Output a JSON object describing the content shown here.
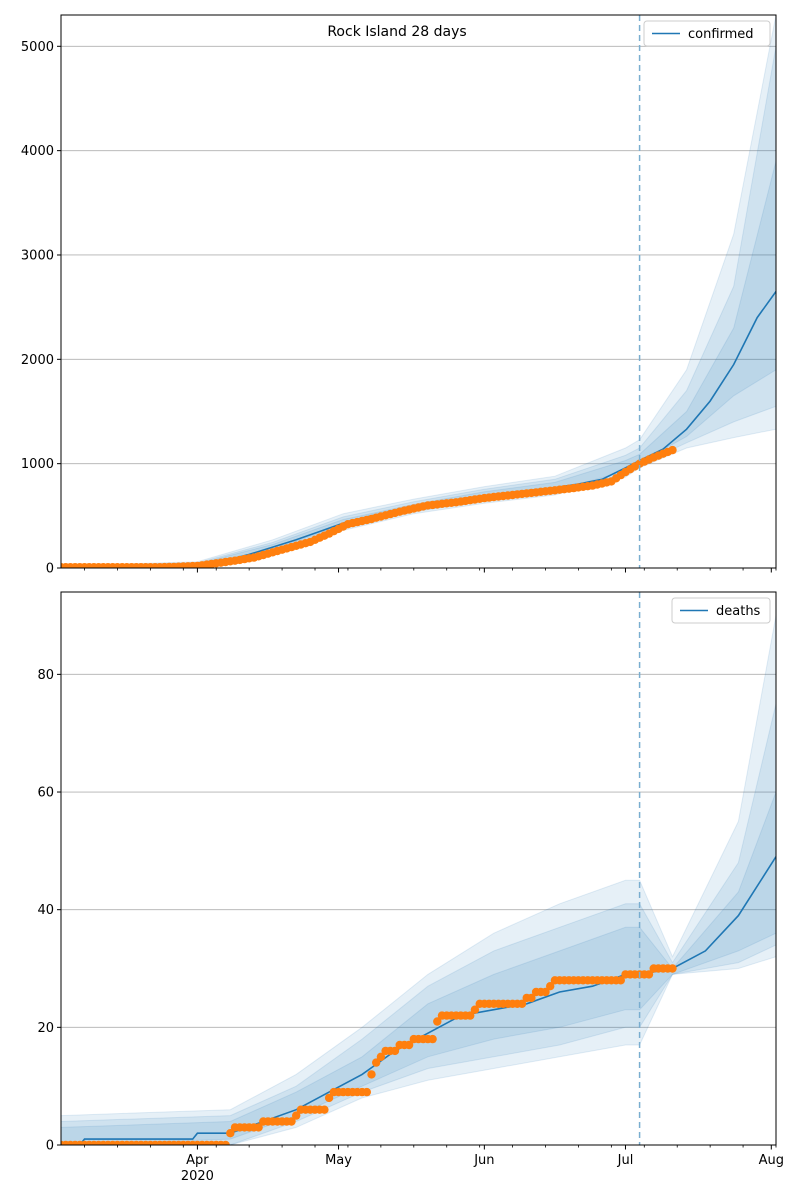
{
  "figure": {
    "title": "Rock Island 28 days"
  },
  "colors": {
    "model": "#1f77b4",
    "observed": "#ff7f0e",
    "band": "#1f77b4",
    "grid": "#b0b0b0",
    "forecast_line": "#7aaed0"
  },
  "x_axis": {
    "range": [
      "2020-03-03",
      "2020-08-02"
    ],
    "major_ticks": [
      {
        "date": "2020-04-01",
        "label": "Apr",
        "sublabel": "2020"
      },
      {
        "date": "2020-05-01",
        "label": "May",
        "sublabel": ""
      },
      {
        "date": "2020-06-01",
        "label": "Jun",
        "sublabel": ""
      },
      {
        "date": "2020-07-01",
        "label": "Jul",
        "sublabel": ""
      },
      {
        "date": "2020-08-01",
        "label": "Aug",
        "sublabel": ""
      }
    ],
    "minor_ticks": [
      "2020-03-08",
      "2020-03-15",
      "2020-03-22",
      "2020-03-29",
      "2020-04-05",
      "2020-04-12",
      "2020-04-19",
      "2020-04-26",
      "2020-05-03",
      "2020-05-10",
      "2020-05-17",
      "2020-05-24",
      "2020-05-31",
      "2020-06-07",
      "2020-06-14",
      "2020-06-21",
      "2020-06-28",
      "2020-07-05",
      "2020-07-12",
      "2020-07-19",
      "2020-07-26",
      "2020-08-02"
    ]
  },
  "forecast_start": "2020-07-04",
  "chart_data": [
    {
      "type": "line",
      "legend": "confirmed",
      "legend_position": "top-right",
      "grid": "horizontal",
      "ylim": [
        0,
        5300
      ],
      "yticks": [
        0,
        1000,
        2000,
        3000,
        4000,
        5000
      ],
      "model": [
        [
          "2020-03-03",
          5
        ],
        [
          "2020-03-20",
          8
        ],
        [
          "2020-03-27",
          15
        ],
        [
          "2020-04-01",
          30
        ],
        [
          "2020-04-07",
          70
        ],
        [
          "2020-04-12",
          130
        ],
        [
          "2020-04-17",
          200
        ],
        [
          "2020-04-22",
          270
        ],
        [
          "2020-04-27",
          350
        ],
        [
          "2020-05-02",
          430
        ],
        [
          "2020-05-07",
          490
        ],
        [
          "2020-05-12",
          540
        ],
        [
          "2020-05-17",
          580
        ],
        [
          "2020-05-22",
          620
        ],
        [
          "2020-05-27",
          660
        ],
        [
          "2020-06-01",
          690
        ],
        [
          "2020-06-06",
          720
        ],
        [
          "2020-06-11",
          745
        ],
        [
          "2020-06-16",
          770
        ],
        [
          "2020-06-21",
          805
        ],
        [
          "2020-06-26",
          850
        ],
        [
          "2020-07-01",
          960
        ],
        [
          "2020-07-04",
          1030
        ],
        [
          "2020-07-09",
          1140
        ],
        [
          "2020-07-14",
          1330
        ],
        [
          "2020-07-19",
          1600
        ],
        [
          "2020-07-24",
          1950
        ],
        [
          "2020-07-29",
          2400
        ],
        [
          "2020-08-02",
          2650
        ]
      ],
      "bands": [
        {
          "lower": [
            [
              "2020-03-03",
              0
            ],
            [
              "2020-04-01",
              10
            ],
            [
              "2020-04-17",
              150
            ],
            [
              "2020-05-02",
              360
            ],
            [
              "2020-05-17",
              520
            ],
            [
              "2020-06-01",
              620
            ],
            [
              "2020-06-16",
              700
            ],
            [
              "2020-07-01",
              870
            ],
            [
              "2020-07-04",
              960
            ],
            [
              "2020-07-14",
              1150
            ],
            [
              "2020-07-24",
              1250
            ],
            [
              "2020-08-02",
              1330
            ]
          ],
          "upper": [
            [
              "2020-03-03",
              20
            ],
            [
              "2020-04-01",
              60
            ],
            [
              "2020-04-17",
              270
            ],
            [
              "2020-05-02",
              520
            ],
            [
              "2020-05-17",
              660
            ],
            [
              "2020-06-01",
              780
            ],
            [
              "2020-06-16",
              880
            ],
            [
              "2020-07-01",
              1150
            ],
            [
              "2020-07-04",
              1230
            ],
            [
              "2020-07-14",
              1900
            ],
            [
              "2020-07-24",
              3200
            ],
            [
              "2020-08-02",
              5300
            ]
          ]
        },
        {
          "lower": [
            [
              "2020-03-03",
              0
            ],
            [
              "2020-04-01",
              15
            ],
            [
              "2020-04-17",
              165
            ],
            [
              "2020-05-02",
              385
            ],
            [
              "2020-05-17",
              540
            ],
            [
              "2020-06-01",
              640
            ],
            [
              "2020-06-16",
              720
            ],
            [
              "2020-07-01",
              900
            ],
            [
              "2020-07-04",
              990
            ],
            [
              "2020-07-14",
              1200
            ],
            [
              "2020-07-24",
              1400
            ],
            [
              "2020-08-02",
              1550
            ]
          ],
          "upper": [
            [
              "2020-03-03",
              15
            ],
            [
              "2020-04-01",
              50
            ],
            [
              "2020-04-17",
              245
            ],
            [
              "2020-05-02",
              490
            ],
            [
              "2020-05-17",
              635
            ],
            [
              "2020-06-01",
              755
            ],
            [
              "2020-06-16",
              850
            ],
            [
              "2020-07-01",
              1080
            ],
            [
              "2020-07-04",
              1150
            ],
            [
              "2020-07-14",
              1700
            ],
            [
              "2020-07-24",
              2700
            ],
            [
              "2020-08-02",
              5000
            ]
          ]
        },
        {
          "lower": [
            [
              "2020-03-03",
              2
            ],
            [
              "2020-04-01",
              20
            ],
            [
              "2020-04-17",
              180
            ],
            [
              "2020-05-02",
              405
            ],
            [
              "2020-05-17",
              560
            ],
            [
              "2020-06-01",
              660
            ],
            [
              "2020-06-16",
              740
            ],
            [
              "2020-07-01",
              930
            ],
            [
              "2020-07-04",
              1010
            ],
            [
              "2020-07-14",
              1260
            ],
            [
              "2020-07-24",
              1650
            ],
            [
              "2020-08-02",
              1900
            ]
          ],
          "upper": [
            [
              "2020-03-03",
              10
            ],
            [
              "2020-04-01",
              40
            ],
            [
              "2020-04-17",
              225
            ],
            [
              "2020-05-02",
              465
            ],
            [
              "2020-05-17",
              610
            ],
            [
              "2020-06-01",
              730
            ],
            [
              "2020-06-16",
              820
            ],
            [
              "2020-07-01",
              1030
            ],
            [
              "2020-07-04",
              1090
            ],
            [
              "2020-07-14",
              1500
            ],
            [
              "2020-07-24",
              2300
            ],
            [
              "2020-08-02",
              3900
            ]
          ]
        }
      ],
      "observed": [
        [
          "2020-03-03",
          8
        ],
        [
          "2020-03-24",
          8
        ],
        [
          "2020-03-28",
          12
        ],
        [
          "2020-04-01",
          20
        ],
        [
          "2020-04-05",
          45
        ],
        [
          "2020-04-09",
          70
        ],
        [
          "2020-04-13",
          100
        ],
        [
          "2020-04-17",
          150
        ],
        [
          "2020-04-21",
          200
        ],
        [
          "2020-04-25",
          250
        ],
        [
          "2020-04-29",
          330
        ],
        [
          "2020-05-03",
          420
        ],
        [
          "2020-05-08",
          470
        ],
        [
          "2020-05-14",
          540
        ],
        [
          "2020-05-20",
          600
        ],
        [
          "2020-05-26",
          630
        ],
        [
          "2020-06-01",
          670
        ],
        [
          "2020-06-07",
          700
        ],
        [
          "2020-06-13",
          730
        ],
        [
          "2020-06-19",
          760
        ],
        [
          "2020-06-24",
          790
        ],
        [
          "2020-06-28",
          830
        ],
        [
          "2020-07-01",
          920
        ],
        [
          "2020-07-04",
          1000
        ],
        [
          "2020-07-07",
          1060
        ],
        [
          "2020-07-11",
          1130
        ]
      ]
    },
    {
      "type": "line",
      "legend": "deaths",
      "legend_position": "top-right",
      "grid": "horizontal",
      "ylim": [
        0,
        94
      ],
      "yticks": [
        0,
        20,
        40,
        60,
        80
      ],
      "model": [
        [
          "2020-03-03",
          0
        ],
        [
          "2020-03-07",
          0
        ],
        [
          "2020-03-08",
          1
        ],
        [
          "2020-03-31",
          1
        ],
        [
          "2020-04-01",
          2
        ],
        [
          "2020-04-08",
          2
        ],
        [
          "2020-04-15",
          4
        ],
        [
          "2020-04-22",
          6
        ],
        [
          "2020-04-29",
          9
        ],
        [
          "2020-05-06",
          12
        ],
        [
          "2020-05-13",
          16
        ],
        [
          "2020-05-20",
          19
        ],
        [
          "2020-05-27",
          22
        ],
        [
          "2020-06-03",
          23
        ],
        [
          "2020-06-10",
          24
        ],
        [
          "2020-06-17",
          26
        ],
        [
          "2020-06-24",
          27
        ],
        [
          "2020-07-01",
          29
        ],
        [
          "2020-07-04",
          29
        ],
        [
          "2020-07-11",
          30
        ],
        [
          "2020-07-18",
          33
        ],
        [
          "2020-07-25",
          39
        ],
        [
          "2020-08-02",
          49
        ]
      ],
      "bands": [
        {
          "lower": [
            [
              "2020-03-03",
              0
            ],
            [
              "2020-04-08",
              0
            ],
            [
              "2020-04-22",
              3
            ],
            [
              "2020-05-06",
              8
            ],
            [
              "2020-05-20",
              11
            ],
            [
              "2020-06-03",
              13
            ],
            [
              "2020-06-17",
              15
            ],
            [
              "2020-07-01",
              17
            ],
            [
              "2020-07-04",
              17
            ],
            [
              "2020-07-11",
              29
            ],
            [
              "2020-07-25",
              30
            ],
            [
              "2020-08-02",
              32
            ]
          ],
          "upper": [
            [
              "2020-03-03",
              5
            ],
            [
              "2020-04-08",
              6
            ],
            [
              "2020-04-22",
              12
            ],
            [
              "2020-05-06",
              20
            ],
            [
              "2020-05-20",
              29
            ],
            [
              "2020-06-03",
              36
            ],
            [
              "2020-06-17",
              41
            ],
            [
              "2020-07-01",
              45
            ],
            [
              "2020-07-04",
              45
            ],
            [
              "2020-07-11",
              32
            ],
            [
              "2020-07-25",
              55
            ],
            [
              "2020-08-02",
              90
            ]
          ]
        },
        {
          "lower": [
            [
              "2020-03-03",
              0
            ],
            [
              "2020-04-08",
              0
            ],
            [
              "2020-04-22",
              4
            ],
            [
              "2020-05-06",
              9
            ],
            [
              "2020-05-20",
              13
            ],
            [
              "2020-06-03",
              15
            ],
            [
              "2020-06-17",
              17
            ],
            [
              "2020-07-01",
              20
            ],
            [
              "2020-07-04",
              20
            ],
            [
              "2020-07-11",
              29
            ],
            [
              "2020-07-25",
              31
            ],
            [
              "2020-08-02",
              34
            ]
          ],
          "upper": [
            [
              "2020-03-03",
              4
            ],
            [
              "2020-04-08",
              5
            ],
            [
              "2020-04-22",
              10
            ],
            [
              "2020-05-06",
              18
            ],
            [
              "2020-05-20",
              27
            ],
            [
              "2020-06-03",
              33
            ],
            [
              "2020-06-17",
              37
            ],
            [
              "2020-07-01",
              41
            ],
            [
              "2020-07-04",
              41
            ],
            [
              "2020-07-11",
              31
            ],
            [
              "2020-07-25",
              48
            ],
            [
              "2020-08-02",
              75
            ]
          ]
        },
        {
          "lower": [
            [
              "2020-03-03",
              0
            ],
            [
              "2020-04-08",
              1
            ],
            [
              "2020-04-22",
              5
            ],
            [
              "2020-05-06",
              10
            ],
            [
              "2020-05-20",
              15
            ],
            [
              "2020-06-03",
              18
            ],
            [
              "2020-06-17",
              20
            ],
            [
              "2020-07-01",
              23
            ],
            [
              "2020-07-04",
              23
            ],
            [
              "2020-07-11",
              29
            ],
            [
              "2020-07-25",
              33
            ],
            [
              "2020-08-02",
              36
            ]
          ],
          "upper": [
            [
              "2020-03-03",
              3
            ],
            [
              "2020-04-08",
              4
            ],
            [
              "2020-04-22",
              9
            ],
            [
              "2020-05-06",
              15
            ],
            [
              "2020-05-20",
              24
            ],
            [
              "2020-06-03",
              29
            ],
            [
              "2020-06-17",
              33
            ],
            [
              "2020-07-01",
              37
            ],
            [
              "2020-07-04",
              37
            ],
            [
              "2020-07-11",
              30
            ],
            [
              "2020-07-25",
              43
            ],
            [
              "2020-08-02",
              60
            ]
          ]
        }
      ],
      "observed": [
        [
          "2020-03-03",
          0
        ],
        [
          "2020-04-07",
          0
        ],
        [
          "2020-04-08",
          2
        ],
        [
          "2020-04-09",
          3
        ],
        [
          "2020-04-14",
          3
        ],
        [
          "2020-04-15",
          4
        ],
        [
          "2020-04-21",
          4
        ],
        [
          "2020-04-22",
          5
        ],
        [
          "2020-04-23",
          6
        ],
        [
          "2020-04-28",
          6
        ],
        [
          "2020-04-29",
          8
        ],
        [
          "2020-04-30",
          9
        ],
        [
          "2020-05-07",
          9
        ],
        [
          "2020-05-08",
          12
        ],
        [
          "2020-05-09",
          14
        ],
        [
          "2020-05-10",
          15
        ],
        [
          "2020-05-12",
          16
        ],
        [
          "2020-05-15",
          17
        ],
        [
          "2020-05-18",
          18
        ],
        [
          "2020-05-21",
          18
        ],
        [
          "2020-05-22",
          21
        ],
        [
          "2020-05-24",
          22
        ],
        [
          "2020-05-29",
          22
        ],
        [
          "2020-05-30",
          23
        ],
        [
          "2020-06-01",
          24
        ],
        [
          "2020-06-09",
          24
        ],
        [
          "2020-06-10",
          25
        ],
        [
          "2020-06-14",
          26
        ],
        [
          "2020-06-16",
          28
        ],
        [
          "2020-06-30",
          28
        ],
        [
          "2020-07-01",
          29
        ],
        [
          "2020-07-06",
          29
        ],
        [
          "2020-07-07",
          30
        ],
        [
          "2020-07-11",
          30
        ]
      ]
    }
  ]
}
